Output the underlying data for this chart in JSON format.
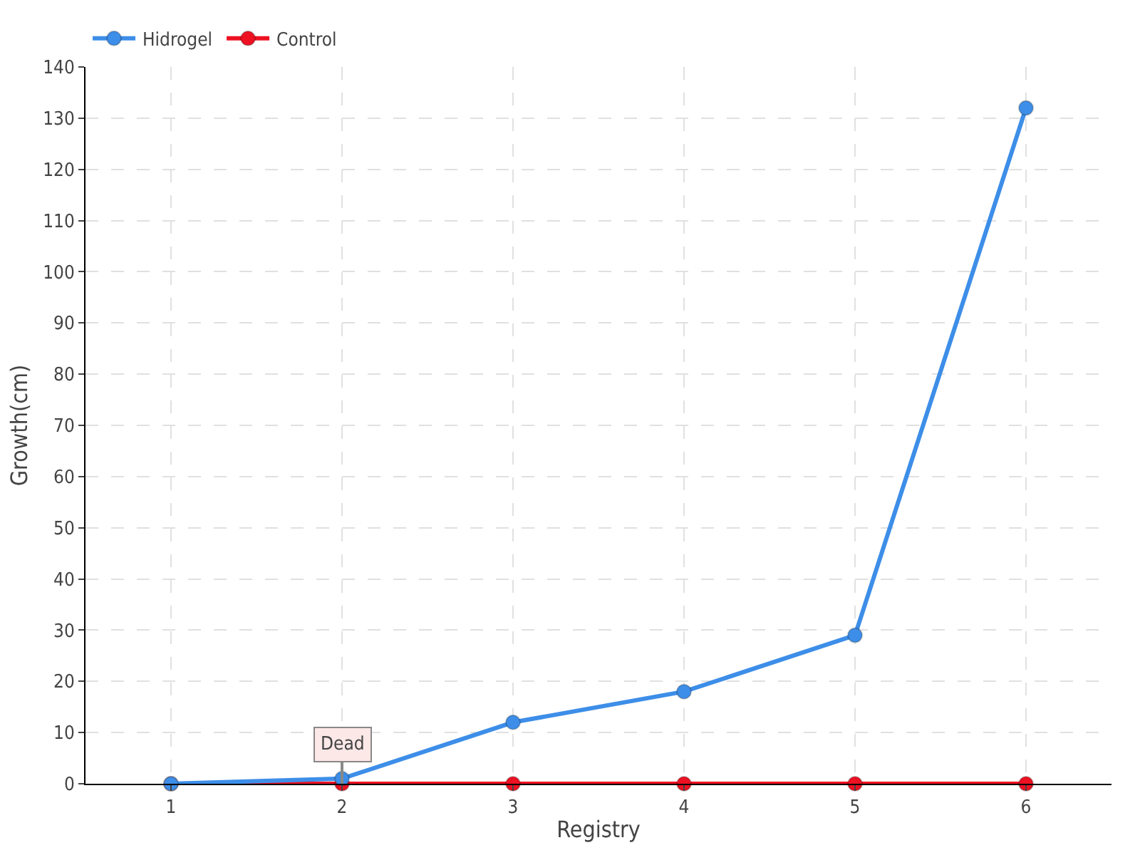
{
  "chart_data": {
    "type": "line",
    "xlabel": "Registry",
    "ylabel": "Growth(cm)",
    "x": [
      1,
      2,
      3,
      4,
      5,
      6
    ],
    "series": [
      {
        "name": "Hidrogel",
        "color": "#3d8ee8",
        "values": [
          0,
          1,
          12,
          18,
          29,
          132
        ]
      },
      {
        "name": "Control",
        "color": "#ee1122",
        "values": [
          0,
          0,
          0,
          0,
          0,
          0
        ]
      }
    ],
    "xlim": [
      0.5,
      6.5
    ],
    "xticks": [
      1,
      2,
      3,
      4,
      5,
      6
    ],
    "ylim": [
      0,
      140
    ],
    "yticks": [
      0,
      10,
      20,
      30,
      40,
      50,
      60,
      70,
      80,
      90,
      100,
      110,
      120,
      130,
      140
    ],
    "annotations": [
      {
        "text": "Dead",
        "x": 2,
        "y": 0
      }
    ],
    "grid": true,
    "legend": "top left",
    "marker": "circle",
    "line_style": "solid"
  }
}
